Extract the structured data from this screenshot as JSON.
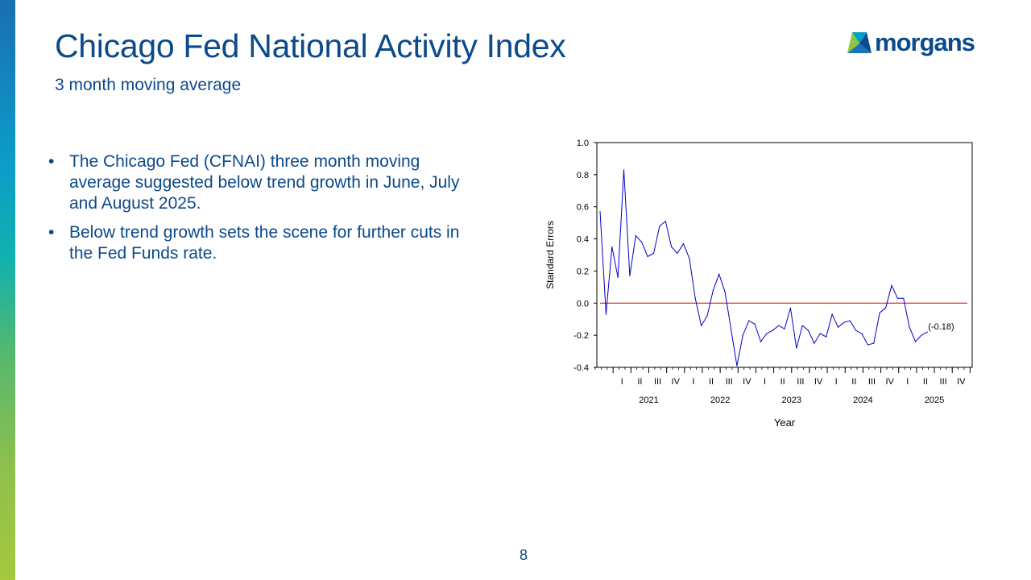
{
  "slide": {
    "title": "Chicago Fed National Activity Index",
    "subtitle": "3 month moving average",
    "bullets": [
      "The Chicago Fed (CFNAI) three month moving average suggested below trend growth in June, July and August 2025.",
      "Below trend growth sets the scene for further cuts in the Fed Funds rate."
    ],
    "bullet_glyph": "•",
    "page_number": "8",
    "logo_text": "morgans"
  },
  "colors": {
    "title": "#0b4a8b",
    "series_line": "#0000cc",
    "zero_line": "#cc0000",
    "logo_green": "#8dc63f",
    "logo_blue": "#0b4a8b",
    "logo_teal": "#00a0c6"
  },
  "chart_data": {
    "type": "line",
    "title": "",
    "xlabel": "Year",
    "ylabel": "Standard Errors",
    "ylim": [
      -0.4,
      1.0
    ],
    "y_ticks": [
      "1.0",
      "0.8",
      "0.6",
      "0.4",
      "0.2",
      "0.0",
      "-0.2",
      "-0.4"
    ],
    "y_tick_values": [
      1.0,
      0.8,
      0.6,
      0.4,
      0.2,
      0.0,
      -0.2,
      -0.4
    ],
    "quarter_labels": [
      "I",
      "II",
      "III",
      "IV"
    ],
    "years": [
      "2021",
      "2022",
      "2023",
      "2024",
      "2025"
    ],
    "x_start": "2020-10",
    "reference_line": 0.0,
    "annotation": "(-0.18)",
    "series": [
      {
        "name": "CFNAI 3 month moving average",
        "values": [
          0.57,
          -0.07,
          0.35,
          0.16,
          0.83,
          0.17,
          0.42,
          0.38,
          0.29,
          0.31,
          0.48,
          0.51,
          0.35,
          0.31,
          0.37,
          0.28,
          0.03,
          -0.14,
          -0.08,
          0.08,
          0.18,
          0.07,
          -0.16,
          -0.39,
          -0.2,
          -0.11,
          -0.13,
          -0.24,
          -0.19,
          -0.17,
          -0.14,
          -0.16,
          -0.03,
          -0.28,
          -0.14,
          -0.17,
          -0.25,
          -0.19,
          -0.21,
          -0.07,
          -0.15,
          -0.12,
          -0.11,
          -0.17,
          -0.19,
          -0.26,
          -0.25,
          -0.06,
          -0.03,
          0.11,
          0.03,
          0.03,
          -0.15,
          -0.24,
          -0.2,
          -0.18
        ]
      }
    ]
  }
}
